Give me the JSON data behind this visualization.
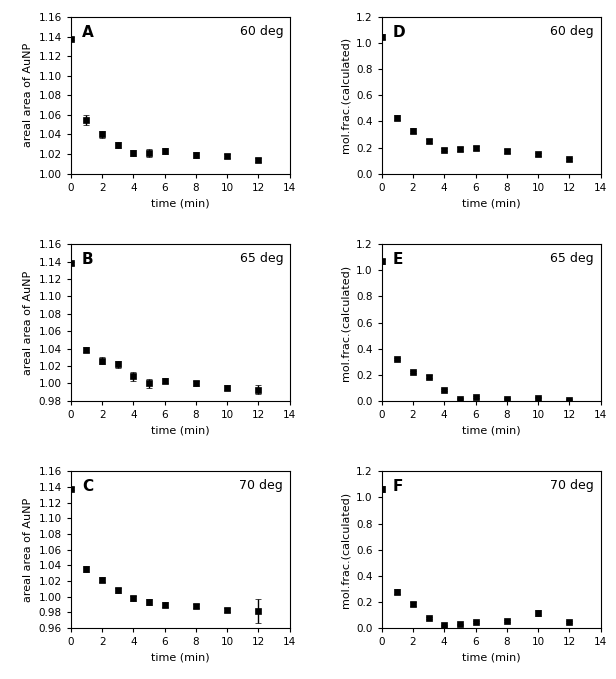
{
  "panel_A": {
    "label": "A",
    "temp": "60 deg",
    "x": [
      0,
      1,
      2,
      3,
      4,
      5,
      6,
      8,
      10,
      12
    ],
    "y": [
      1.138,
      1.055,
      1.04,
      1.029,
      1.021,
      1.021,
      1.023,
      1.019,
      1.018,
      1.014
    ],
    "yerr": [
      0.002,
      0.005,
      0.004,
      0.003,
      0.003,
      0.004,
      0.003,
      0.003,
      0.002,
      0.002
    ],
    "ylabel": "areal area of AuNP",
    "xlabel": "time (min)",
    "ylim": [
      1.0,
      1.16
    ],
    "yticks": [
      1.0,
      1.02,
      1.04,
      1.06,
      1.08,
      1.1,
      1.12,
      1.14,
      1.16
    ],
    "xlim": [
      0,
      14
    ],
    "xticks": [
      0,
      2,
      4,
      6,
      8,
      10,
      12,
      14
    ]
  },
  "panel_B": {
    "label": "B",
    "temp": "65 deg",
    "x": [
      0,
      1,
      2,
      3,
      4,
      5,
      6,
      8,
      10,
      12
    ],
    "y": [
      1.138,
      1.039,
      1.026,
      1.022,
      1.008,
      1.0,
      1.003,
      1.0,
      0.995,
      0.993
    ],
    "yerr": [
      0.002,
      0.003,
      0.004,
      0.004,
      0.005,
      0.005,
      0.003,
      0.003,
      0.003,
      0.005
    ],
    "ylabel": "areal area of AuNP",
    "xlabel": "time (min)",
    "ylim": [
      0.98,
      1.16
    ],
    "yticks": [
      0.98,
      1.0,
      1.02,
      1.04,
      1.06,
      1.08,
      1.1,
      1.12,
      1.14,
      1.16
    ],
    "xlim": [
      0,
      14
    ],
    "xticks": [
      0,
      2,
      4,
      6,
      8,
      10,
      12,
      14
    ]
  },
  "panel_C": {
    "label": "C",
    "temp": "70 deg",
    "x": [
      0,
      1,
      2,
      3,
      4,
      5,
      6,
      8,
      10,
      12
    ],
    "y": [
      1.138,
      1.035,
      1.022,
      1.008,
      0.998,
      0.993,
      0.99,
      0.988,
      0.983,
      0.982
    ],
    "yerr": [
      0.002,
      0.004,
      0.003,
      0.003,
      0.003,
      0.004,
      0.003,
      0.003,
      0.003,
      0.015
    ],
    "ylabel": "areal area of AuNP",
    "xlabel": "time (min)",
    "ylim": [
      0.96,
      1.16
    ],
    "yticks": [
      0.96,
      0.98,
      1.0,
      1.02,
      1.04,
      1.06,
      1.08,
      1.1,
      1.12,
      1.14,
      1.16
    ],
    "xlim": [
      0,
      14
    ],
    "xticks": [
      0,
      2,
      4,
      6,
      8,
      10,
      12,
      14
    ]
  },
  "panel_D": {
    "label": "D",
    "temp": "60 deg",
    "x": [
      0,
      1,
      2,
      3,
      4,
      5,
      6,
      8,
      10,
      12
    ],
    "y": [
      1.05,
      0.43,
      0.33,
      0.25,
      0.185,
      0.19,
      0.2,
      0.175,
      0.148,
      0.11
    ],
    "yerr": [
      0.02,
      0.02,
      0.02,
      0.015,
      0.015,
      0.015,
      0.015,
      0.015,
      0.01,
      0.01
    ],
    "ylabel": "mol.frac.(calculated)",
    "xlabel": "time (min)",
    "ylim": [
      0.0,
      1.2
    ],
    "yticks": [
      0.0,
      0.2,
      0.4,
      0.6,
      0.8,
      1.0,
      1.2
    ],
    "xlim": [
      0,
      14
    ],
    "xticks": [
      0,
      2,
      4,
      6,
      8,
      10,
      12,
      14
    ]
  },
  "panel_E": {
    "label": "E",
    "temp": "65 deg",
    "x": [
      0,
      1,
      2,
      3,
      4,
      5,
      6,
      8,
      10,
      12
    ],
    "y": [
      1.07,
      0.32,
      0.22,
      0.185,
      0.082,
      0.018,
      0.03,
      0.018,
      0.025,
      0.008
    ],
    "yerr": [
      0.02,
      0.01,
      0.01,
      0.01,
      0.008,
      0.004,
      0.005,
      0.004,
      0.005,
      0.003
    ],
    "ylabel": "mol.frac.(calculated)",
    "xlabel": "time (min)",
    "ylim": [
      0.0,
      1.2
    ],
    "yticks": [
      0.0,
      0.2,
      0.4,
      0.6,
      0.8,
      1.0,
      1.2
    ],
    "xlim": [
      0,
      14
    ],
    "xticks": [
      0,
      2,
      4,
      6,
      8,
      10,
      12,
      14
    ]
  },
  "panel_F": {
    "label": "F",
    "temp": "70 deg",
    "x": [
      0,
      1,
      2,
      3,
      4,
      5,
      6,
      8,
      10,
      12
    ],
    "y": [
      1.065,
      0.28,
      0.185,
      0.075,
      0.022,
      0.03,
      0.045,
      0.055,
      0.115,
      0.048
    ],
    "yerr": [
      0.02,
      0.02,
      0.015,
      0.008,
      0.005,
      0.005,
      0.006,
      0.006,
      0.02,
      0.01
    ],
    "ylabel": "mol.frac.(calculated)",
    "xlabel": "time (min)",
    "ylim": [
      0.0,
      1.2
    ],
    "yticks": [
      0.0,
      0.2,
      0.4,
      0.6,
      0.8,
      1.0,
      1.2
    ],
    "xlim": [
      0,
      14
    ],
    "xticks": [
      0,
      2,
      4,
      6,
      8,
      10,
      12,
      14
    ]
  },
  "marker": "s",
  "markersize": 4,
  "linewidth": 0,
  "elinewidth": 1.0,
  "capsize": 2,
  "color": "black",
  "label_fontsize": 8,
  "tick_fontsize": 7.5,
  "panel_label_fontsize": 11,
  "temp_fontsize": 9,
  "background_color": "#ffffff"
}
